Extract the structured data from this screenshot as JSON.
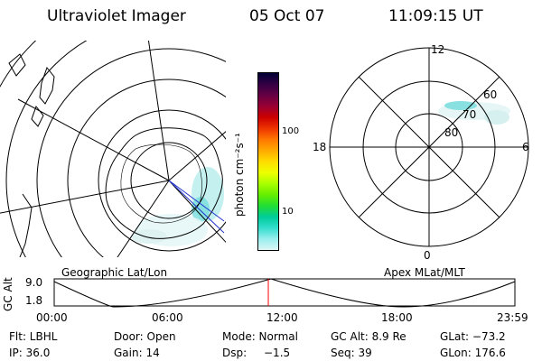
{
  "header": {
    "instrument": "Ultraviolet Imager",
    "date": "05 Oct 07",
    "time": "11:09:15 UT"
  },
  "colorbar": {
    "unit_label": "photon cm⁻²s⁻¹",
    "ticks": [
      "100",
      "10"
    ],
    "colors": [
      "#000033",
      "#330044",
      "#660044",
      "#990033",
      "#cc0000",
      "#ee3300",
      "#ff7700",
      "#ffaa00",
      "#ffdd00",
      "#eeff00",
      "#aaff00",
      "#66ee00",
      "#22dd33",
      "#00cc99",
      "#33ddcc",
      "#99eeee",
      "#ddf6f6"
    ]
  },
  "polar_plot": {
    "labels": {
      "top": "12",
      "bottom": "0",
      "left": "18",
      "right": "6"
    },
    "rings": [
      "60",
      "70",
      "80"
    ]
  },
  "plot_titles": {
    "left": "Geographic Lat/Lon",
    "right": "Apex MLat/MLT"
  },
  "altitude_track": {
    "axis_label": "GC Alt",
    "y_ticks": [
      "9.0",
      "1.8"
    ],
    "x_ticks": [
      "00:00",
      "06:00",
      "12:00",
      "18:00",
      "23:59"
    ],
    "current_time_hours": 11.154,
    "marker_color": "#ff0000"
  },
  "status": {
    "flt": "Flt: LBHL",
    "door": "Door: Open",
    "mode": "Mode: Normal",
    "gc_alt": "GC Alt: 8.9 Re",
    "glat": "GLat: −73.2",
    "ip": "IP: 36.0",
    "gain": "Gain: 14",
    "dsp_label": "Dsp:",
    "dsp_value": "−1.5",
    "seq": "Seq: 39",
    "glon": "GLon: 176.6"
  }
}
